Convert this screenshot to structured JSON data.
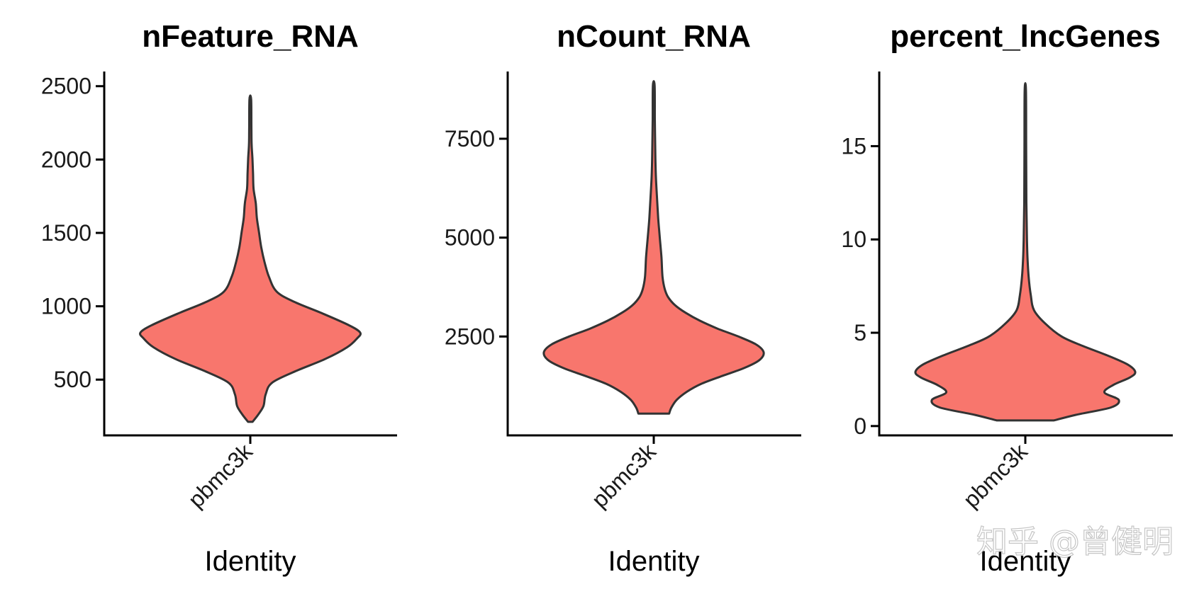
{
  "chart_data": [
    {
      "type": "violin",
      "title": "nFeature_RNA",
      "xlabel": "Identity",
      "ylabel": "",
      "categories": [
        "pbmc3k"
      ],
      "ylim": [
        120,
        2600
      ],
      "yticks": [
        500,
        1000,
        1500,
        2000,
        2500
      ],
      "ytick_labels": [
        "500",
        "1000",
        "1500",
        "2000",
        "2500"
      ],
      "series": [
        {
          "category": "pbmc3k",
          "min": 212,
          "max": 2410,
          "peak": 820,
          "profile": [
            [
              212,
              0.02
            ],
            [
              260,
              0.07
            ],
            [
              320,
              0.12
            ],
            [
              400,
              0.14
            ],
            [
              480,
              0.2
            ],
            [
              560,
              0.42
            ],
            [
              640,
              0.68
            ],
            [
              720,
              0.88
            ],
            [
              780,
              0.97
            ],
            [
              820,
              1.0
            ],
            [
              870,
              0.9
            ],
            [
              950,
              0.66
            ],
            [
              1030,
              0.4
            ],
            [
              1100,
              0.24
            ],
            [
              1200,
              0.17
            ],
            [
              1300,
              0.13
            ],
            [
              1400,
              0.1
            ],
            [
              1500,
              0.08
            ],
            [
              1600,
              0.06
            ],
            [
              1700,
              0.05
            ],
            [
              1800,
              0.03
            ],
            [
              1900,
              0.025
            ],
            [
              2000,
              0.02
            ],
            [
              2100,
              0.012
            ],
            [
              2200,
              0.01
            ],
            [
              2410,
              0.008
            ]
          ]
        }
      ],
      "fill_color": "#F8766D",
      "stroke_color": "#333333"
    },
    {
      "type": "violin",
      "title": "nCount_RNA",
      "xlabel": "Identity",
      "ylabel": "",
      "categories": [
        "pbmc3k"
      ],
      "ylim": [
        0,
        9200
      ],
      "yticks": [
        2500,
        5000,
        7500
      ],
      "ytick_labels": [
        "2500",
        "5000",
        "7500"
      ],
      "series": [
        {
          "category": "pbmc3k",
          "min": 550,
          "max": 8850,
          "peak": 2100,
          "profile": [
            [
              550,
              0.14
            ],
            [
              700,
              0.16
            ],
            [
              900,
              0.21
            ],
            [
              1100,
              0.3
            ],
            [
              1300,
              0.43
            ],
            [
              1500,
              0.62
            ],
            [
              1700,
              0.82
            ],
            [
              1900,
              0.96
            ],
            [
              2100,
              1.0
            ],
            [
              2300,
              0.93
            ],
            [
              2500,
              0.77
            ],
            [
              2700,
              0.58
            ],
            [
              2900,
              0.42
            ],
            [
              3100,
              0.29
            ],
            [
              3300,
              0.19
            ],
            [
              3500,
              0.13
            ],
            [
              3700,
              0.1
            ],
            [
              4000,
              0.08
            ],
            [
              4500,
              0.07
            ],
            [
              5000,
              0.055
            ],
            [
              5500,
              0.04
            ],
            [
              6000,
              0.03
            ],
            [
              6500,
              0.02
            ],
            [
              7000,
              0.015
            ],
            [
              8000,
              0.01
            ],
            [
              8850,
              0.008
            ]
          ]
        }
      ],
      "fill_color": "#F8766D",
      "stroke_color": "#333333"
    },
    {
      "type": "violin",
      "title": "percent_lncGenes",
      "xlabel": "Identity",
      "ylabel": "",
      "categories": [
        "pbmc3k"
      ],
      "ylim": [
        -0.5,
        19
      ],
      "yticks": [
        0,
        5,
        10,
        15
      ],
      "ytick_labels": [
        "0",
        "5",
        "10",
        "15"
      ],
      "series": [
        {
          "category": "pbmc3k",
          "min": 0.3,
          "max": 18.0,
          "peak": 2.9,
          "profile": [
            [
              0.3,
              0.26
            ],
            [
              0.6,
              0.46
            ],
            [
              1.0,
              0.78
            ],
            [
              1.4,
              0.85
            ],
            [
              1.8,
              0.72
            ],
            [
              2.2,
              0.8
            ],
            [
              2.6,
              0.95
            ],
            [
              2.9,
              1.0
            ],
            [
              3.3,
              0.93
            ],
            [
              3.8,
              0.74
            ],
            [
              4.3,
              0.52
            ],
            [
              4.8,
              0.33
            ],
            [
              5.5,
              0.18
            ],
            [
              6.2,
              0.08
            ],
            [
              7.0,
              0.05
            ],
            [
              8.0,
              0.03
            ],
            [
              9.0,
              0.02
            ],
            [
              10.0,
              0.015
            ],
            [
              12.0,
              0.01
            ],
            [
              15.0,
              0.008
            ],
            [
              18.0,
              0.006
            ]
          ]
        }
      ],
      "fill_color": "#F8766D",
      "stroke_color": "#333333"
    }
  ],
  "watermark": "知乎 @曾健明"
}
